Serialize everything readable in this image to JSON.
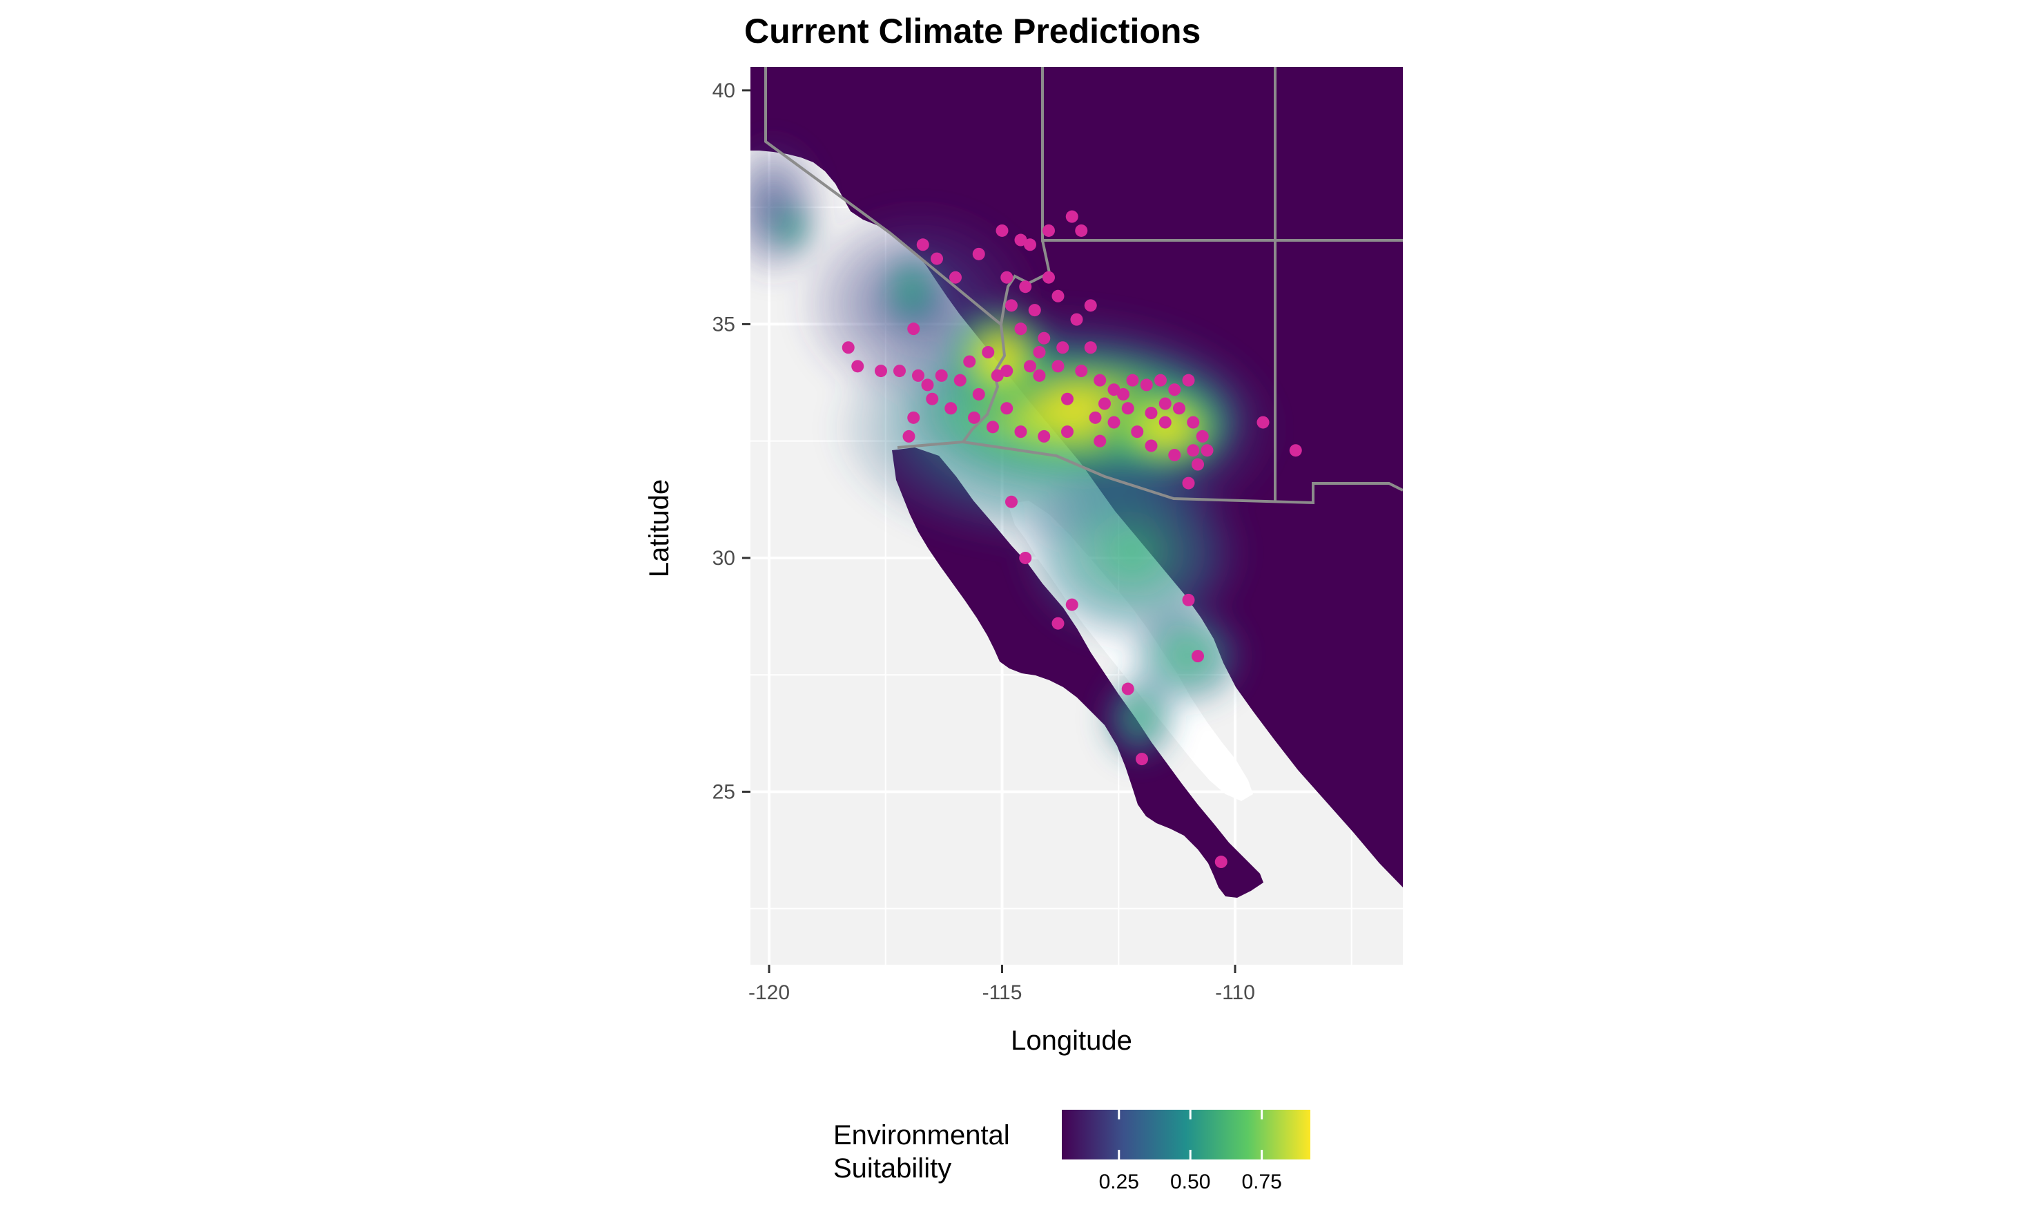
{
  "chart_data": {
    "type": "raster-map",
    "title": "Current Climate Predictions",
    "xlabel": "Longitude",
    "ylabel": "Latitude",
    "xlim": [
      -120.4,
      -106.4
    ],
    "ylim": [
      21.3,
      40.5
    ],
    "x_ticks": [
      "-120",
      "-115",
      "-110"
    ],
    "x_tick_values": [
      -120,
      -115,
      -110
    ],
    "y_ticks": [
      "25",
      "30",
      "35",
      "40"
    ],
    "y_tick_values": [
      25,
      30,
      35,
      40
    ],
    "grid": true,
    "legend": {
      "title_lines": [
        "Environmental",
        "Suitability"
      ],
      "placement": "bottom",
      "ticks": [
        "0.25",
        "0.50",
        "0.75"
      ],
      "tick_values": [
        0.25,
        0.5,
        0.75
      ],
      "range": [
        0.05,
        0.92
      ],
      "palette": [
        "#440154",
        "#3b528b",
        "#21908d",
        "#5dc963",
        "#fde725"
      ]
    },
    "colors": {
      "panel": "#f2f2f2",
      "grid": "#ffffff",
      "points": "#d6289b",
      "borders": "#8c8c8c",
      "water": "#ffffff"
    },
    "occurrences": [
      [
        -116.7,
        36.7
      ],
      [
        -116.4,
        36.4
      ],
      [
        -116.0,
        36.0
      ],
      [
        -115.5,
        36.5
      ],
      [
        -115.0,
        37.0
      ],
      [
        -114.6,
        36.8
      ],
      [
        -114.4,
        36.7
      ],
      [
        -114.0,
        37.0
      ],
      [
        -113.5,
        37.3
      ],
      [
        -113.3,
        37.0
      ],
      [
        -114.9,
        36.0
      ],
      [
        -114.5,
        35.8
      ],
      [
        -114.0,
        36.0
      ],
      [
        -114.8,
        35.4
      ],
      [
        -114.3,
        35.3
      ],
      [
        -113.8,
        35.6
      ],
      [
        -113.4,
        35.1
      ],
      [
        -113.1,
        35.4
      ],
      [
        -114.1,
        34.7
      ],
      [
        -114.6,
        34.9
      ],
      [
        -113.7,
        34.5
      ],
      [
        -113.1,
        34.5
      ],
      [
        -114.4,
        34.1
      ],
      [
        -114.9,
        34.0
      ],
      [
        -114.2,
        33.9
      ],
      [
        -113.8,
        34.1
      ],
      [
        -113.3,
        34.0
      ],
      [
        -112.9,
        33.8
      ],
      [
        -112.6,
        33.6
      ],
      [
        -112.2,
        33.8
      ],
      [
        -111.9,
        33.7
      ],
      [
        -111.6,
        33.8
      ],
      [
        -111.3,
        33.6
      ],
      [
        -111.0,
        33.8
      ],
      [
        -112.8,
        33.3
      ],
      [
        -112.3,
        33.2
      ],
      [
        -111.8,
        33.1
      ],
      [
        -111.5,
        33.3
      ],
      [
        -112.6,
        32.9
      ],
      [
        -112.1,
        32.7
      ],
      [
        -111.8,
        32.4
      ],
      [
        -111.3,
        32.2
      ],
      [
        -110.9,
        32.3
      ],
      [
        -110.8,
        32.0
      ],
      [
        -111.0,
        31.6
      ],
      [
        -110.7,
        32.6
      ],
      [
        -110.6,
        32.3
      ],
      [
        -112.9,
        32.5
      ],
      [
        -113.6,
        32.7
      ],
      [
        -114.6,
        32.7
      ],
      [
        -114.1,
        32.6
      ],
      [
        -115.2,
        32.8
      ],
      [
        -115.6,
        33.0
      ],
      [
        -116.1,
        33.2
      ],
      [
        -116.5,
        33.4
      ],
      [
        -116.9,
        33.0
      ],
      [
        -117.0,
        32.6
      ],
      [
        -116.6,
        33.7
      ],
      [
        -116.3,
        33.9
      ],
      [
        -115.9,
        33.8
      ],
      [
        -116.8,
        33.9
      ],
      [
        -117.2,
        34.0
      ],
      [
        -117.6,
        34.0
      ],
      [
        -118.1,
        34.1
      ],
      [
        -118.3,
        34.5
      ],
      [
        -116.9,
        34.9
      ],
      [
        -115.7,
        34.2
      ],
      [
        -115.3,
        34.4
      ],
      [
        -115.5,
        33.5
      ],
      [
        -114.9,
        33.2
      ],
      [
        -114.8,
        31.2
      ],
      [
        -114.5,
        30.0
      ],
      [
        -113.5,
        29.0
      ],
      [
        -113.8,
        28.6
      ],
      [
        -111.0,
        29.1
      ],
      [
        -110.8,
        27.9
      ],
      [
        -112.3,
        27.2
      ],
      [
        -112.0,
        25.7
      ],
      [
        -110.3,
        23.5
      ],
      [
        -109.4,
        32.9
      ],
      [
        -108.7,
        32.3
      ],
      [
        -111.5,
        32.9
      ],
      [
        -111.2,
        33.2
      ],
      [
        -112.4,
        33.5
      ],
      [
        -113.0,
        33.0
      ],
      [
        -114.2,
        34.4
      ],
      [
        -115.1,
        33.9
      ],
      [
        -113.6,
        33.4
      ],
      [
        -110.9,
        32.9
      ]
    ]
  }
}
